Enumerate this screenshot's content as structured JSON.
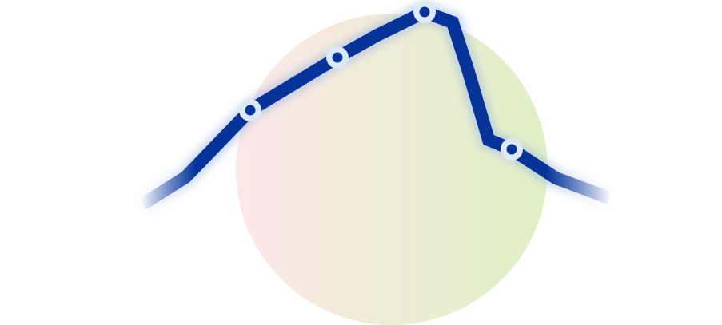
{
  "illustration": {
    "circle": {
      "gradient_start": "#fce8e8",
      "gradient_end": "#dff0c4"
    },
    "trend_line": {
      "color": "#05339a",
      "marker_ring_color": "#dde9f7",
      "marker_dot_color": "#05339a",
      "marker_count": 4
    }
  }
}
